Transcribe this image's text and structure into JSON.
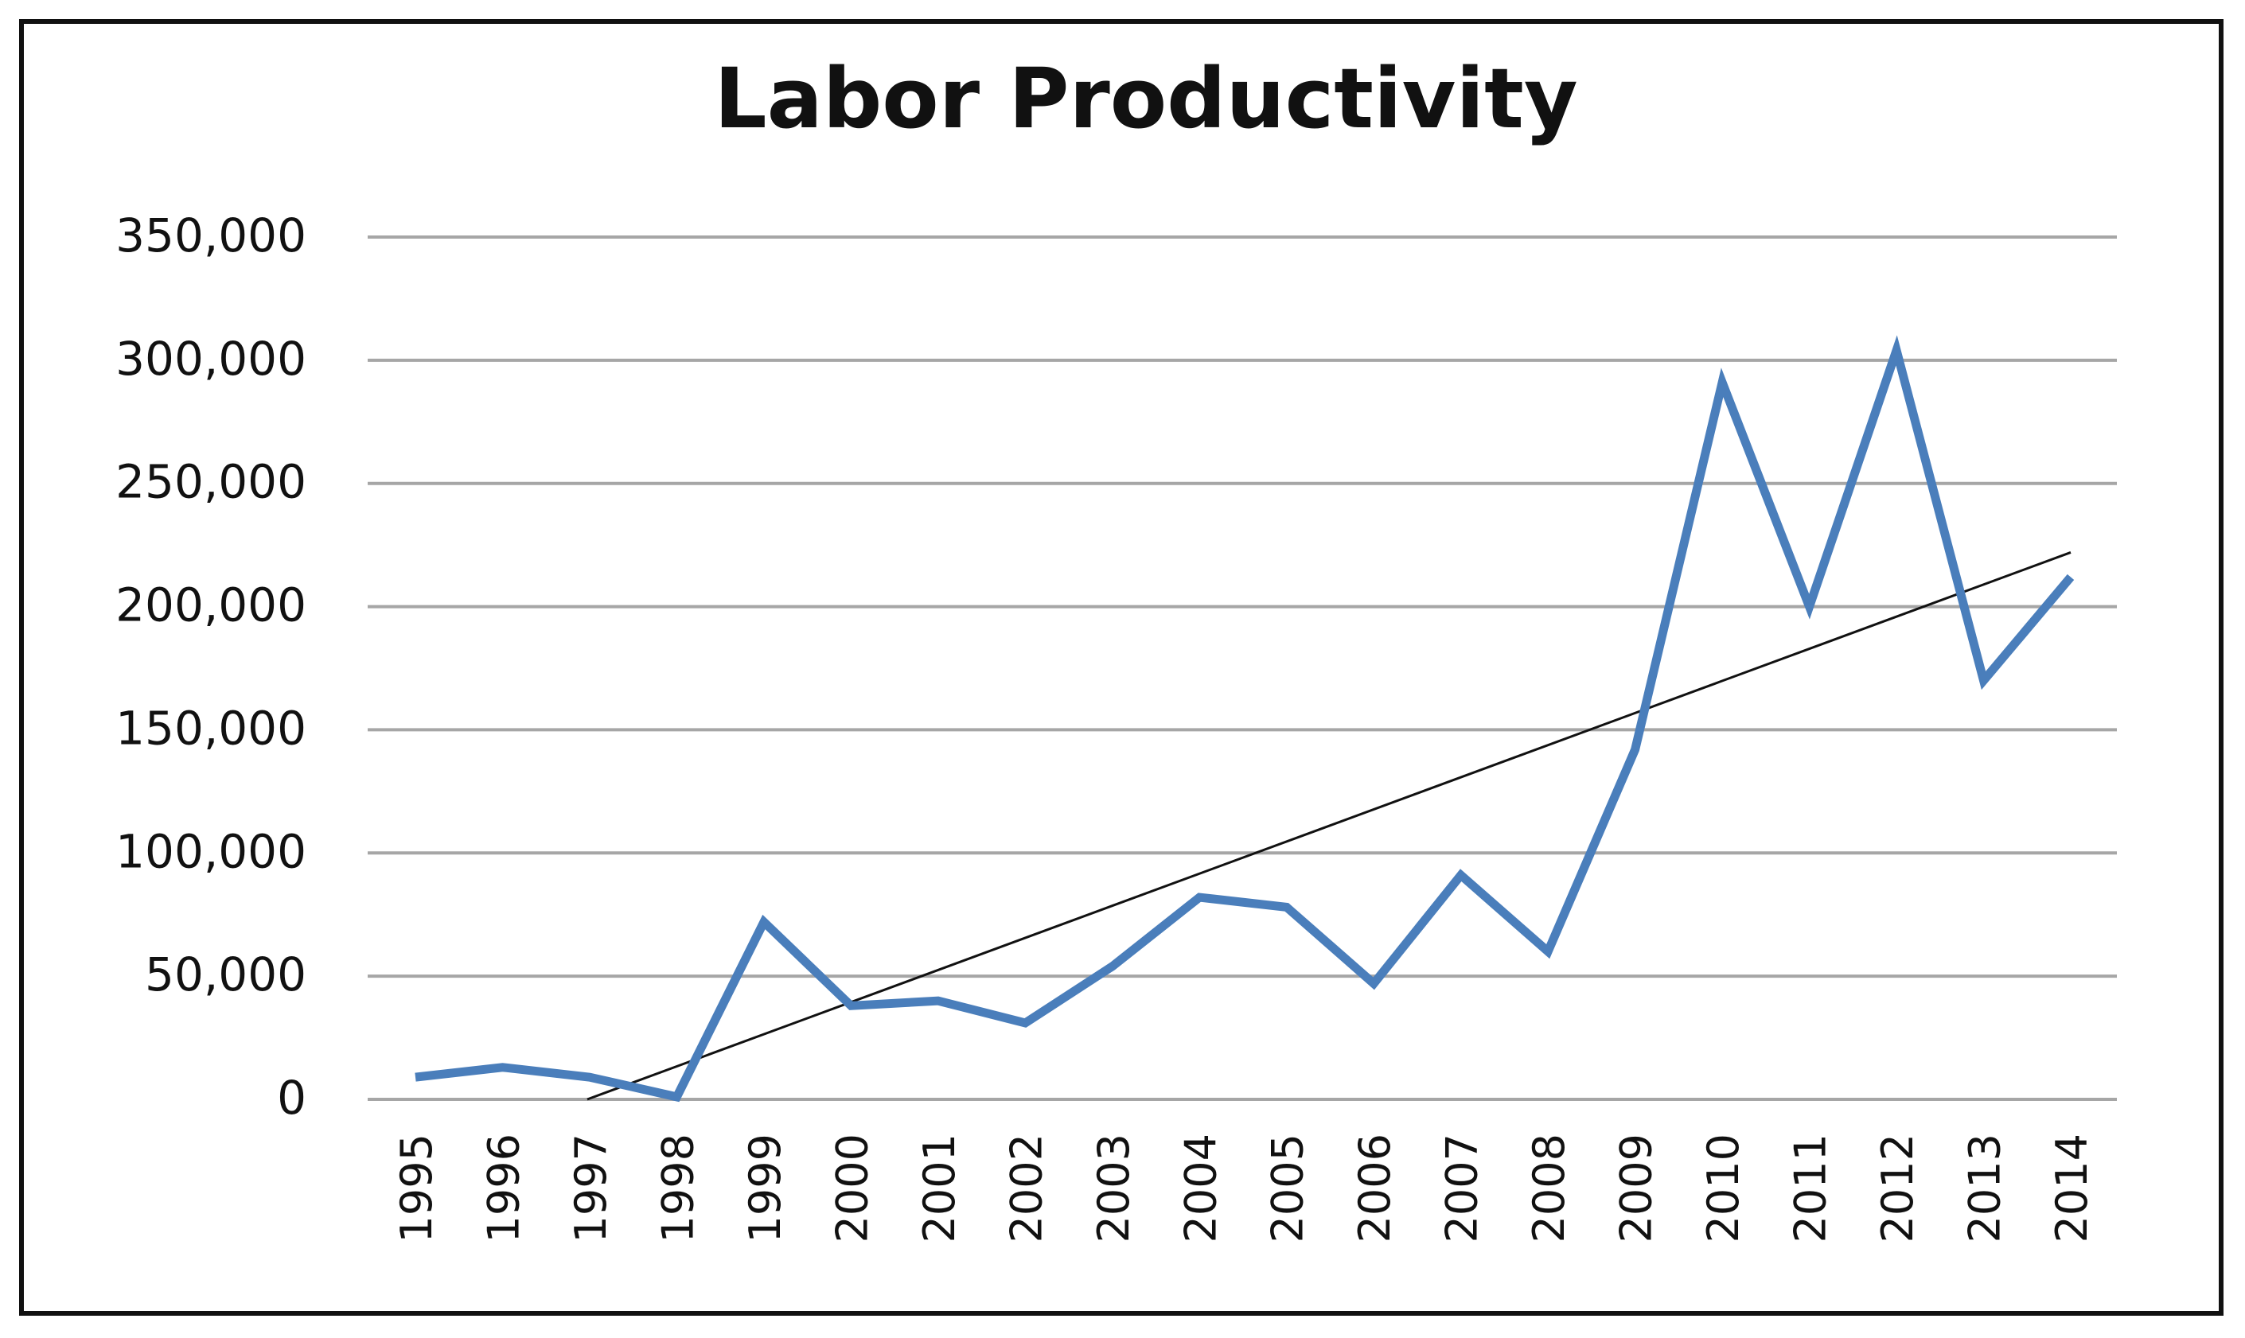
{
  "chart_data": {
    "type": "line",
    "title": "Labor Productivity",
    "xlabel": "",
    "ylabel": "",
    "categories": [
      "1995",
      "1996",
      "1997",
      "1998",
      "1999",
      "2000",
      "2001",
      "2002",
      "2003",
      "2004",
      "2005",
      "2006",
      "2007",
      "2008",
      "2009",
      "2010",
      "2011",
      "2012",
      "2013",
      "2014"
    ],
    "series": [
      {
        "values": [
          9000,
          13000,
          9000,
          1000,
          72000,
          38000,
          40000,
          31000,
          54000,
          82000,
          78000,
          47000,
          91000,
          60000,
          142000,
          291000,
          200000,
          304000,
          170000,
          212000
        ],
        "color": "#4a7ebb"
      }
    ],
    "trendline": {
      "type": "linear",
      "start": {
        "x": "1997",
        "y": 0
      },
      "end": {
        "x": "2014",
        "y": 222000
      },
      "color": "#111111"
    },
    "y_ticks": [
      "0",
      "50,000",
      "100,000",
      "150,000",
      "200,000",
      "250,000",
      "300,000",
      "350,000"
    ],
    "ylim": [
      0,
      350000
    ],
    "grid": true,
    "legend": "none"
  }
}
